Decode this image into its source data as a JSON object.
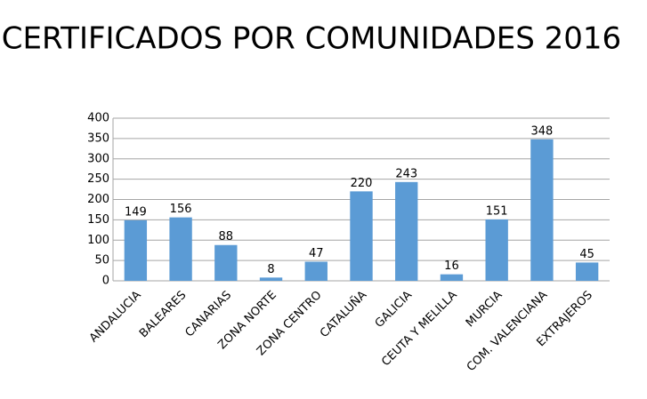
{
  "chart_data": {
    "type": "bar",
    "title": "CERTIFICADOS POR COMUNIDADES 2016",
    "categories": [
      "ANDALUCIA",
      "BALEARES",
      "CANARIAS",
      "ZONA NORTE",
      "ZONA CENTRO",
      "CATALUÑA",
      "GALICIA",
      "CEUTA Y MELILLA",
      "MURCIA",
      "COM. VALENCIANA",
      "EXTRAJEROS"
    ],
    "values": [
      149,
      156,
      88,
      8,
      47,
      220,
      243,
      16,
      151,
      348,
      45
    ],
    "color": "#5b9bd5",
    "ylim": [
      0,
      400
    ],
    "yticks": [
      0,
      50,
      100,
      150,
      200,
      250,
      300,
      350,
      400
    ],
    "grid": true
  }
}
